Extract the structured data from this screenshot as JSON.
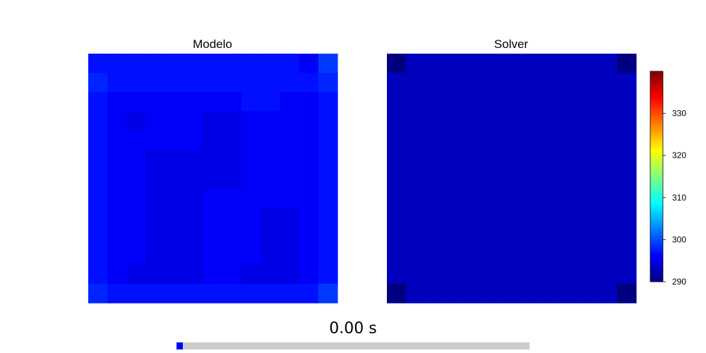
{
  "chart_data": [
    {
      "type": "heatmap",
      "title": "Modelo",
      "rows": 13,
      "cols": 13,
      "values": [
        [
          297,
          297,
          297,
          297,
          297,
          297,
          297,
          297,
          297,
          297,
          297,
          296,
          299
        ],
        [
          298,
          297,
          297,
          297,
          297,
          297,
          297,
          297,
          297,
          297,
          297,
          297,
          298
        ],
        [
          297,
          296,
          296,
          296,
          296,
          296,
          296,
          296,
          297,
          297,
          296,
          296,
          297
        ],
        [
          297,
          296,
          295,
          296,
          296,
          296,
          295,
          295,
          296,
          296,
          296,
          296,
          297
        ],
        [
          297,
          296,
          296,
          296,
          296,
          296,
          295,
          295,
          296,
          296,
          296,
          296,
          297
        ],
        [
          297,
          296,
          296,
          295,
          295,
          295,
          295,
          295,
          296,
          296,
          296,
          296,
          297
        ],
        [
          297,
          296,
          296,
          295,
          295,
          295,
          295,
          295,
          296,
          296,
          296,
          296,
          297
        ],
        [
          297,
          296,
          296,
          295,
          295,
          295,
          296,
          296,
          296,
          296,
          296,
          296,
          297
        ],
        [
          297,
          296,
          296,
          295,
          295,
          295,
          296,
          296,
          296,
          295,
          295,
          296,
          297
        ],
        [
          297,
          296,
          296,
          295,
          295,
          295,
          296,
          296,
          296,
          295,
          295,
          296,
          297
        ],
        [
          297,
          296,
          296,
          295,
          295,
          295,
          296,
          296,
          296,
          295,
          295,
          296,
          297
        ],
        [
          297,
          296,
          295,
          295,
          295,
          295,
          296,
          296,
          295,
          295,
          295,
          296,
          297
        ],
        [
          298,
          297,
          297,
          297,
          297,
          297,
          297,
          297,
          297,
          297,
          297,
          297,
          299
        ]
      ]
    },
    {
      "type": "heatmap",
      "title": "Solver",
      "rows": 13,
      "cols": 13,
      "values": [
        [
          288,
          293,
          293,
          293,
          293,
          293,
          293,
          293,
          293,
          293,
          293,
          293,
          288
        ],
        [
          293,
          293,
          293,
          293,
          293,
          293,
          293,
          293,
          293,
          293,
          293,
          293,
          293
        ],
        [
          293,
          293,
          293,
          293,
          293,
          293,
          293,
          293,
          293,
          293,
          293,
          293,
          293
        ],
        [
          293,
          293,
          293,
          293,
          293,
          293,
          293,
          293,
          293,
          293,
          293,
          293,
          293
        ],
        [
          293,
          293,
          293,
          293,
          293,
          293,
          293,
          293,
          293,
          293,
          293,
          293,
          293
        ],
        [
          293,
          293,
          293,
          293,
          293,
          293,
          293,
          293,
          293,
          293,
          293,
          293,
          293
        ],
        [
          293,
          293,
          293,
          293,
          293,
          293,
          293,
          293,
          293,
          293,
          293,
          293,
          293
        ],
        [
          293,
          293,
          293,
          293,
          293,
          293,
          293,
          293,
          293,
          293,
          293,
          293,
          293
        ],
        [
          293,
          293,
          293,
          293,
          293,
          293,
          293,
          293,
          293,
          293,
          293,
          293,
          293
        ],
        [
          293,
          293,
          293,
          293,
          293,
          293,
          293,
          293,
          293,
          293,
          293,
          293,
          293
        ],
        [
          293,
          293,
          293,
          293,
          293,
          293,
          293,
          293,
          293,
          293,
          293,
          293,
          293
        ],
        [
          293,
          293,
          293,
          293,
          293,
          293,
          293,
          293,
          293,
          293,
          293,
          293,
          293
        ],
        [
          288,
          293,
          293,
          293,
          293,
          293,
          293,
          293,
          293,
          293,
          293,
          293,
          288
        ]
      ]
    }
  ],
  "colorbar": {
    "colormap": "jet",
    "vmin": 290,
    "vmax": 340,
    "ticks": [
      290,
      300,
      310,
      320,
      330
    ]
  },
  "playback": {
    "time_label": "0.00 s",
    "progress": 0.0
  },
  "colors": {
    "progress_track": "#cccccc",
    "progress_fill": "#0000ff"
  }
}
